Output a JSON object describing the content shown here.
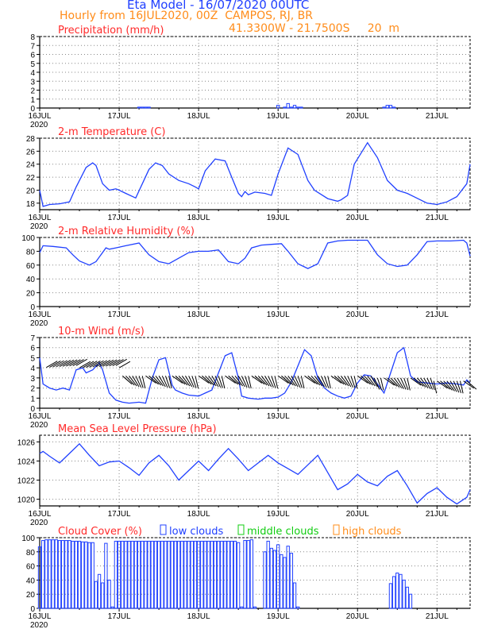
{
  "header": {
    "title": "Eta Model - 16/07/2020 00UTC",
    "subtitle": "Hourly from 16JUL2020, 00Z  CAMPOS, RJ, BR",
    "coords": "41.3300W - 21.7500S     20  m"
  },
  "colors": {
    "series": "#2040ff",
    "title_red": "#ff2a2a",
    "orange": "#ff8c1a",
    "green": "#11cc11",
    "axis": "#000000",
    "grid": "#888888"
  },
  "chart_data": [
    {
      "type": "bar",
      "title": "Precipitation (mm/h)",
      "ylim": [
        0,
        8
      ],
      "yticks": [
        "0",
        "1",
        "2",
        "3",
        "4",
        "5",
        "6",
        "7",
        "8"
      ],
      "xticks": [
        "16JUL",
        "17JUL",
        "18JUL",
        "19JUL",
        "20JUL",
        "21JUL"
      ],
      "year_label": "2020",
      "x": [
        30,
        31,
        32,
        33,
        72,
        74,
        75,
        76,
        77,
        78,
        79,
        104,
        105,
        106,
        107
      ],
      "values": [
        0.1,
        0.1,
        0.1,
        0.1,
        0.3,
        0.1,
        0.5,
        0.1,
        0.3,
        0.1,
        0.1,
        0.1,
        0.3,
        0.3,
        0.1
      ]
    },
    {
      "type": "line",
      "title": "2-m Temperature (C)",
      "ylim": [
        17,
        28
      ],
      "yticks": [
        "18",
        "20",
        "22",
        "24",
        "26",
        "28"
      ],
      "xticks": [
        "16JUL",
        "17JUL",
        "18JUL",
        "19JUL",
        "20JUL",
        "21JUL"
      ],
      "year_label": "2020",
      "x": [
        0,
        1,
        3,
        6,
        9,
        11,
        14,
        16,
        17,
        19,
        21,
        23,
        24,
        26,
        29,
        33,
        35,
        37,
        39,
        42,
        45,
        47,
        48,
        50,
        53,
        56,
        58,
        60,
        61,
        62,
        63,
        65,
        68,
        70,
        72,
        75,
        78,
        81,
        83,
        87,
        90,
        91,
        93,
        95,
        99,
        102,
        105,
        108,
        111,
        113,
        117,
        120,
        123,
        126,
        129,
        130
      ],
      "values": [
        20,
        17.5,
        17.8,
        17.9,
        18.2,
        20.5,
        23.5,
        24.2,
        23.8,
        21,
        20,
        20.2,
        20,
        19.5,
        18.8,
        23.2,
        24.2,
        23.8,
        22.5,
        21.5,
        21,
        20.5,
        20.2,
        23,
        24.8,
        24.5,
        22,
        19.5,
        19,
        19.8,
        19.3,
        19.7,
        19.5,
        19.2,
        22.5,
        26.5,
        25.5,
        21.5,
        20,
        18.7,
        18.3,
        18.5,
        19.2,
        24,
        27.3,
        25,
        21.5,
        20,
        19.5,
        19,
        18,
        17.8,
        18.2,
        19,
        21,
        24
      ]
    },
    {
      "type": "line",
      "title": "2-m Relative Humidity (%)",
      "ylim": [
        0,
        100
      ],
      "yticks": [
        "0",
        "20",
        "40",
        "60",
        "80",
        "100"
      ],
      "xticks": [
        "16JUL",
        "17JUL",
        "18JUL",
        "19JUL",
        "20JUL",
        "21JUL"
      ],
      "year_label": "2020",
      "x": [
        0,
        1,
        4,
        8,
        10,
        12,
        15,
        17,
        20,
        21,
        23,
        26,
        30,
        33,
        36,
        39,
        42,
        45,
        48,
        51,
        54,
        57,
        60,
        62,
        64,
        67,
        70,
        73,
        75,
        78,
        81,
        84,
        87,
        90,
        93,
        96,
        99,
        102,
        105,
        108,
        111,
        114,
        117,
        120,
        124,
        128,
        129,
        130
      ],
      "values": [
        78,
        88,
        87,
        85,
        75,
        66,
        60,
        65,
        85,
        83,
        85,
        88,
        92,
        75,
        65,
        62,
        70,
        78,
        80,
        80,
        82,
        65,
        62,
        70,
        85,
        89,
        90,
        91,
        80,
        62,
        55,
        62,
        92,
        95,
        96,
        96,
        96,
        75,
        62,
        58,
        60,
        75,
        94,
        95,
        95,
        96,
        92,
        73
      ]
    },
    {
      "type": "line",
      "title": "10-m Wind (m/s)",
      "ylim": [
        0,
        7
      ],
      "yticks": [
        "0",
        "1",
        "2",
        "3",
        "4",
        "5",
        "6",
        "7"
      ],
      "xticks": [
        "16JUL",
        "17JUL",
        "18JUL",
        "19JUL",
        "20JUL",
        "21JUL"
      ],
      "year_label": "2020",
      "x": [
        0,
        1,
        3,
        5,
        7,
        9,
        11,
        13,
        14,
        16,
        18,
        19,
        21,
        23,
        25,
        27,
        30,
        32,
        34,
        36,
        38,
        40,
        41,
        43,
        45,
        48,
        50,
        52,
        54,
        56,
        58,
        60,
        61,
        63,
        66,
        68,
        70,
        72,
        74,
        76,
        78,
        80,
        82,
        84,
        86,
        88,
        90,
        92,
        94,
        96,
        98,
        100,
        102,
        104,
        106,
        108,
        110,
        112,
        114,
        117,
        120,
        123,
        126,
        128,
        129,
        130
      ],
      "values": [
        5,
        2.4,
        2,
        1.8,
        2,
        1.8,
        3.8,
        4,
        3.5,
        3.8,
        4.5,
        3.8,
        1.5,
        0.8,
        0.6,
        0.5,
        0.6,
        0.5,
        3,
        4.8,
        5,
        2.3,
        1.8,
        1.5,
        1.3,
        1.2,
        1.5,
        1.8,
        3.5,
        5.2,
        5.5,
        3,
        1.2,
        1.0,
        0.9,
        1.0,
        1.0,
        1.1,
        1.5,
        2.6,
        4.2,
        5.8,
        5.2,
        3.0,
        2.0,
        1.5,
        1.2,
        1.0,
        1.2,
        2.5,
        3.3,
        3.2,
        2.4,
        1.5,
        3.5,
        5.5,
        6,
        3.2,
        2.6,
        2.5,
        2.4,
        2.5,
        2.4,
        2.3,
        2.8,
        2.5
      ]
    },
    {
      "type": "line",
      "title": "Mean Sea Level Pressure (hPa)",
      "ylim": [
        1019.3,
        1026.7
      ],
      "yticks": [
        "1020",
        "1022",
        "1024",
        "1026"
      ],
      "xticks": [
        "16JUL",
        "17JUL",
        "18JUL",
        "19JUL",
        "20JUL",
        "21JUL"
      ],
      "year_label": "2020",
      "x": [
        0,
        1,
        3,
        6,
        9,
        12,
        15,
        18,
        21,
        24,
        27,
        30,
        33,
        36,
        39,
        42,
        45,
        48,
        51,
        54,
        57,
        60,
        63,
        66,
        69,
        72,
        75,
        78,
        81,
        84,
        87,
        90,
        93,
        96,
        99,
        102,
        105,
        108,
        111,
        114,
        117,
        120,
        123,
        126,
        129,
        130
      ],
      "values": [
        1024.8,
        1025,
        1024.5,
        1023.8,
        1024.8,
        1025.8,
        1024.6,
        1023.5,
        1023.9,
        1024,
        1023.3,
        1022.5,
        1023.8,
        1024.6,
        1023.5,
        1022,
        1023,
        1024,
        1023,
        1024.2,
        1025.3,
        1024.2,
        1023,
        1023.8,
        1024.6,
        1023.8,
        1023.2,
        1022.6,
        1023.6,
        1024.6,
        1022.8,
        1021,
        1021.6,
        1022.6,
        1021.8,
        1021.4,
        1022.4,
        1023,
        1021.4,
        1019.6,
        1020.6,
        1021.2,
        1020.2,
        1019.5,
        1020.2,
        1021
      ]
    },
    {
      "type": "bar",
      "title": "Cloud Cover (%)",
      "ylim": [
        0,
        100
      ],
      "yticks": [
        "0",
        "20",
        "40",
        "60",
        "80",
        "100"
      ],
      "xticks": [
        "16JUL",
        "17JUL",
        "18JUL",
        "19JUL",
        "20JUL",
        "21JUL"
      ],
      "year_label": "2020",
      "legend": [
        "low clouds",
        "middle clouds",
        "high clouds"
      ],
      "x": [
        0,
        1,
        2,
        3,
        4,
        5,
        6,
        7,
        8,
        9,
        10,
        11,
        12,
        13,
        14,
        15,
        16,
        17,
        18,
        19,
        20,
        21,
        22,
        23,
        24,
        25,
        26,
        27,
        28,
        29,
        30,
        31,
        32,
        33,
        34,
        35,
        36,
        37,
        38,
        39,
        40,
        41,
        42,
        43,
        44,
        45,
        46,
        47,
        48,
        49,
        50,
        51,
        52,
        53,
        54,
        55,
        56,
        57,
        58,
        59,
        60,
        61,
        62,
        63,
        64,
        65,
        66,
        67,
        68,
        69,
        70,
        71,
        72,
        73,
        74,
        75,
        76,
        77,
        78,
        79,
        80,
        81,
        82,
        83,
        84,
        85,
        86,
        87,
        88,
        89,
        90,
        91,
        92,
        93,
        94,
        95,
        96,
        97,
        98,
        99,
        100,
        101,
        102,
        103,
        104,
        105,
        106,
        107,
        108,
        109,
        110,
        111,
        112,
        113,
        114,
        115,
        116,
        117,
        118,
        119,
        120,
        121,
        122,
        123,
        124,
        125,
        126,
        127,
        128,
        129,
        130
      ],
      "values": [
        87,
        96,
        97,
        97,
        97,
        97,
        96,
        96,
        96,
        96,
        95,
        95,
        95,
        94,
        94,
        93,
        93,
        38,
        48,
        36,
        92,
        40,
        2,
        95,
        95,
        95,
        95,
        95,
        95,
        95,
        95,
        95,
        95,
        95,
        95,
        95,
        95,
        95,
        95,
        95,
        95,
        95,
        95,
        95,
        95,
        95,
        95,
        95,
        95,
        95,
        95,
        95,
        95,
        95,
        95,
        95,
        95,
        95,
        95,
        95,
        93,
        2,
        96,
        96,
        97,
        2,
        0,
        0,
        80,
        95,
        85,
        82,
        90,
        76,
        72,
        88,
        78,
        36,
        2,
        0,
        0,
        0,
        0,
        0,
        0,
        0,
        0,
        0,
        0,
        0,
        0,
        0,
        0,
        0,
        0,
        0,
        0,
        0,
        0,
        0,
        0,
        0,
        0,
        0,
        0,
        0,
        35,
        45,
        50,
        48,
        40,
        30,
        20,
        0,
        0,
        0,
        0,
        0,
        0,
        0,
        0,
        0,
        0,
        0,
        0,
        0,
        0,
        0,
        0,
        0,
        0
      ]
    }
  ]
}
